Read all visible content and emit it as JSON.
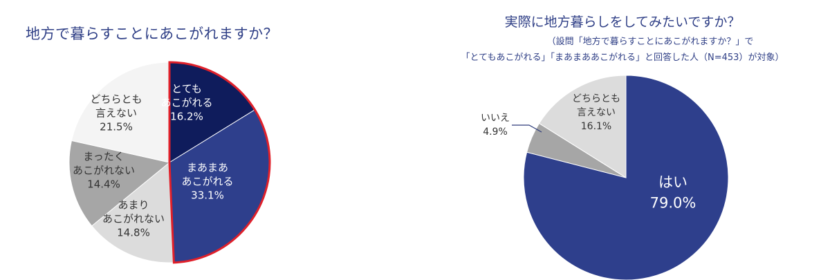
{
  "chart_data": [
    {
      "type": "pie",
      "title": "地方で暮らすことにあこがれますか？",
      "slices": [
        {
          "lines": [
            "とても",
            "あこがれる"
          ],
          "value_label": "16.2%",
          "value": 16.2,
          "color": "#0f1c5c",
          "text_color": "#ffffff",
          "highlight": true
        },
        {
          "lines": [
            "まあまあ",
            "あこがれる"
          ],
          "value_label": "33.1%",
          "value": 33.1,
          "color": "#2e3f8c",
          "text_color": "#ffffff",
          "highlight": true
        },
        {
          "lines": [
            "あまり",
            "あこがれない"
          ],
          "value_label": "14.8%",
          "value": 14.8,
          "color": "#dcdcdc",
          "text_color": "#333333",
          "highlight": false
        },
        {
          "lines": [
            "まったく",
            "あこがれない"
          ],
          "value_label": "14.4%",
          "value": 14.4,
          "color": "#a6a6a6",
          "text_color": "#333333",
          "highlight": false
        },
        {
          "lines": [
            "どちらとも",
            "言えない"
          ],
          "value_label": "21.5%",
          "value": 21.5,
          "color": "#f4f4f4",
          "text_color": "#333333",
          "highlight": false
        }
      ],
      "highlight_color": "#e0202a"
    },
    {
      "type": "pie",
      "title": "実際に地方暮らしをしてみたいですか？",
      "subtitle_lines": [
        "（設問「地方で暮らすことにあこがれますか？」で",
        "「とてもあこがれる」「まあまああこがれる」と回答した人（N=453）が対象）"
      ],
      "slices": [
        {
          "lines": [
            "はい"
          ],
          "value_label": "79.0%",
          "value": 79.0,
          "color": "#2e3f8c",
          "text_color": "#ffffff"
        },
        {
          "lines": [
            "いいえ"
          ],
          "value_label": "4.9%",
          "value": 4.9,
          "color": "#a6a6a6",
          "text_color": "#333333"
        },
        {
          "lines": [
            "どちらとも",
            "言えない"
          ],
          "value_label": "16.1%",
          "value": 16.1,
          "color": "#dcdcdc",
          "text_color": "#333333"
        }
      ]
    }
  ]
}
